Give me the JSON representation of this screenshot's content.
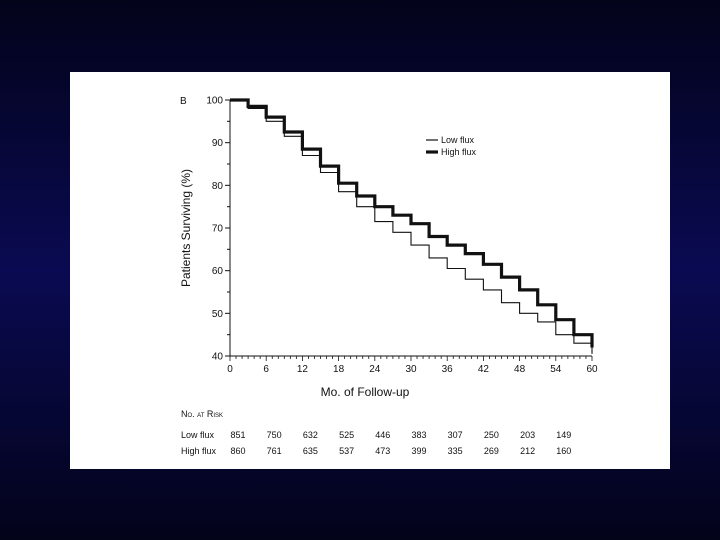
{
  "chart_data": {
    "type": "line",
    "panel_label": "B",
    "title": "",
    "xlabel": "Mo. of Follow-up",
    "ylabel": "Patients Surviving (%)",
    "xlim": [
      0,
      60
    ],
    "ylim": [
      40,
      100
    ],
    "xticks": [
      0,
      6,
      12,
      18,
      24,
      30,
      36,
      42,
      48,
      54,
      60
    ],
    "yticks": [
      40,
      50,
      60,
      70,
      80,
      90,
      100
    ],
    "grid": false,
    "legend_position": "top-right",
    "series": [
      {
        "name": "Low flux",
        "style": "thin",
        "x": [
          0,
          3,
          6,
          9,
          12,
          15,
          18,
          21,
          24,
          27,
          30,
          33,
          36,
          39,
          42,
          45,
          48,
          51,
          54,
          57,
          60
        ],
        "values": [
          100,
          98,
          95,
          91.5,
          87,
          83,
          78.5,
          75,
          71.5,
          69,
          66,
          63,
          60.5,
          58,
          55.5,
          52.5,
          50,
          48,
          45,
          43,
          40.5
        ]
      },
      {
        "name": "High flux",
        "style": "thick",
        "x": [
          0,
          3,
          6,
          9,
          12,
          15,
          18,
          21,
          24,
          27,
          30,
          33,
          36,
          39,
          42,
          45,
          48,
          51,
          54,
          57,
          60
        ],
        "values": [
          100,
          98.5,
          96,
          92.5,
          88.5,
          84.5,
          80.5,
          77.5,
          75,
          73,
          71,
          68,
          66,
          64,
          61.5,
          58.5,
          55.5,
          52,
          48.5,
          45,
          42
        ]
      }
    ]
  },
  "risk_table": {
    "heading": "No. at Risk",
    "rows": [
      {
        "label": "Low flux",
        "values": [
          "851",
          "750",
          "632",
          "525",
          "446",
          "383",
          "307",
          "250",
          "203",
          "149"
        ]
      },
      {
        "label": "High flux",
        "values": [
          "860",
          "761",
          "635",
          "537",
          "473",
          "399",
          "335",
          "269",
          "212",
          "160"
        ]
      }
    ]
  }
}
